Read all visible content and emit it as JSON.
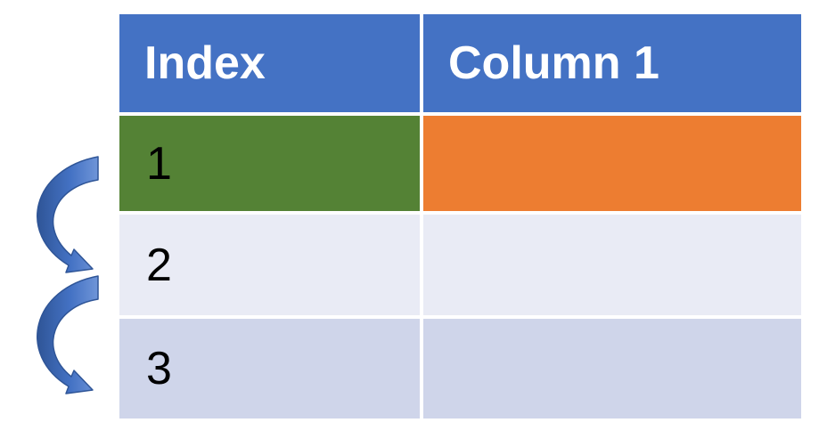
{
  "table": {
    "headers": [
      "Index",
      "Column 1"
    ],
    "rows": [
      {
        "index": "1",
        "value": ""
      },
      {
        "index": "2",
        "value": ""
      },
      {
        "index": "3",
        "value": ""
      }
    ]
  },
  "colors": {
    "header": "#4472c4",
    "row1_index": "#548235",
    "row1_value": "#ed7d31",
    "row2": "#e9ebf5",
    "row3": "#cfd5ea",
    "arrow": "#4472c4"
  },
  "arrows": [
    {
      "from_row": "1",
      "to_row": "2"
    },
    {
      "from_row": "2",
      "to_row": "3"
    }
  ]
}
